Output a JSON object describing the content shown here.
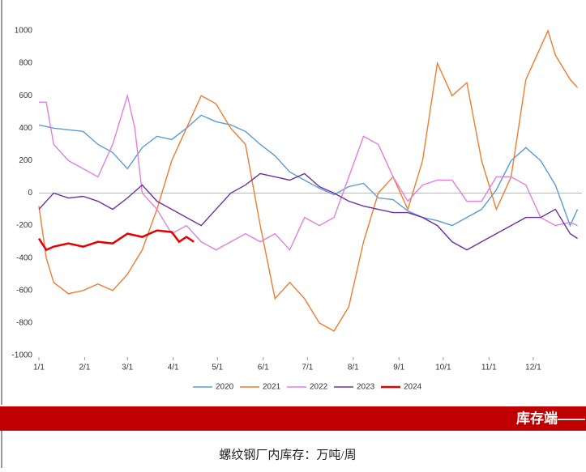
{
  "chart_data": {
    "type": "line",
    "xlim": [
      0,
      368
    ],
    "ylim": [
      -1000,
      1000
    ],
    "xticks": [
      {
        "value": 0,
        "label": "1/1"
      },
      {
        "value": 31,
        "label": "2/1"
      },
      {
        "value": 60,
        "label": "3/1"
      },
      {
        "value": 91,
        "label": "4/1"
      },
      {
        "value": 121,
        "label": "5/1"
      },
      {
        "value": 152,
        "label": "6/1"
      },
      {
        "value": 182,
        "label": "7/1"
      },
      {
        "value": 213,
        "label": "8/1"
      },
      {
        "value": 244,
        "label": "9/1"
      },
      {
        "value": 274,
        "label": "10/1"
      },
      {
        "value": 305,
        "label": "11/1"
      },
      {
        "value": 335,
        "label": "12/1"
      }
    ],
    "yticks": [
      -1000,
      -800,
      -600,
      -400,
      -200,
      0,
      200,
      400,
      600,
      800,
      1000
    ],
    "series": [
      {
        "name": "2020",
        "color": "#5b9bd5",
        "x": [
          0,
          10,
          20,
          30,
          40,
          50,
          60,
          70,
          80,
          90,
          100,
          110,
          120,
          130,
          140,
          150,
          160,
          170,
          180,
          190,
          200,
          210,
          220,
          230,
          240,
          250,
          260,
          270,
          280,
          290,
          300,
          310,
          320,
          330,
          340,
          350,
          360,
          365
        ],
        "values": [
          420,
          400,
          390,
          380,
          300,
          250,
          150,
          280,
          350,
          330,
          400,
          480,
          440,
          420,
          380,
          300,
          230,
          130,
          80,
          30,
          -10,
          40,
          60,
          -30,
          -40,
          -110,
          -150,
          -170,
          -200,
          -150,
          -100,
          20,
          200,
          280,
          200,
          50,
          -200,
          -100
        ]
      },
      {
        "name": "2021",
        "color": "#ed7d31",
        "x": [
          0,
          5,
          10,
          20,
          30,
          40,
          50,
          60,
          70,
          80,
          90,
          100,
          110,
          120,
          130,
          140,
          150,
          160,
          170,
          180,
          190,
          200,
          210,
          220,
          230,
          240,
          250,
          260,
          270,
          280,
          290,
          300,
          310,
          320,
          330,
          340,
          345,
          350,
          360,
          365
        ],
        "values": [
          -80,
          -400,
          -550,
          -620,
          -600,
          -560,
          -600,
          -500,
          -350,
          -100,
          200,
          400,
          600,
          550,
          400,
          300,
          -200,
          -650,
          -550,
          -650,
          -800,
          -850,
          -700,
          -300,
          0,
          100,
          -100,
          200,
          800,
          600,
          680,
          200,
          -100,
          100,
          700,
          900,
          1000,
          850,
          700,
          650
        ]
      },
      {
        "name": "2022",
        "color": "#e27fe0",
        "x": [
          0,
          5,
          10,
          20,
          30,
          40,
          50,
          60,
          65,
          70,
          80,
          90,
          100,
          110,
          120,
          130,
          140,
          150,
          160,
          170,
          180,
          190,
          200,
          210,
          220,
          230,
          240,
          250,
          260,
          270,
          280,
          290,
          300,
          310,
          320,
          330,
          340,
          350,
          360,
          365
        ],
        "values": [
          560,
          560,
          300,
          200,
          150,
          100,
          300,
          600,
          400,
          0,
          -100,
          -250,
          -200,
          -300,
          -350,
          -300,
          -250,
          -300,
          -250,
          -350,
          -150,
          -200,
          -150,
          100,
          350,
          300,
          100,
          -50,
          50,
          80,
          80,
          -50,
          -50,
          100,
          100,
          50,
          -150,
          -200,
          -180,
          -200
        ]
      },
      {
        "name": "2023",
        "color": "#7030a0",
        "x": [
          0,
          10,
          20,
          30,
          40,
          50,
          60,
          70,
          80,
          90,
          100,
          110,
          120,
          130,
          140,
          150,
          160,
          170,
          180,
          190,
          200,
          210,
          220,
          230,
          240,
          250,
          260,
          270,
          280,
          290,
          300,
          310,
          320,
          330,
          340,
          350,
          360,
          365
        ],
        "values": [
          -100,
          0,
          -30,
          -20,
          -50,
          -100,
          -30,
          50,
          -50,
          -100,
          -150,
          -200,
          -100,
          0,
          50,
          120,
          100,
          80,
          120,
          40,
          0,
          -50,
          -80,
          -100,
          -120,
          -120,
          -150,
          -200,
          -300,
          -350,
          -300,
          -250,
          -200,
          -150,
          -150,
          -100,
          -250,
          -280
        ]
      },
      {
        "name": "2024",
        "color": "#e60000",
        "x": [
          0,
          5,
          10,
          20,
          30,
          40,
          50,
          60,
          70,
          80,
          90,
          95,
          100,
          105
        ],
        "values": [
          -280,
          -350,
          -330,
          -310,
          -330,
          -300,
          -310,
          -250,
          -270,
          -230,
          -240,
          -300,
          -270,
          -300
        ]
      }
    ],
    "banner": "库存端——",
    "caption": "螺纹钢厂内库存：万吨/周"
  }
}
